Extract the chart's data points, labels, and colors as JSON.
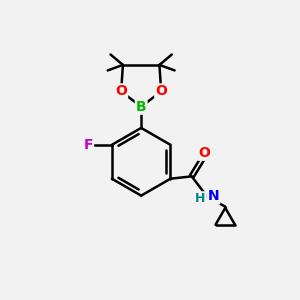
{
  "bg_color": "#f2f2f2",
  "bond_color": "#000000",
  "bond_width": 1.8,
  "atom_colors": {
    "B": "#00bb00",
    "O": "#ff0000",
    "F": "#cc00cc",
    "N": "#0000ee",
    "H_label": "#008888",
    "amide_O": "#ff0000"
  },
  "figsize": [
    3.0,
    3.0
  ],
  "dpi": 100
}
